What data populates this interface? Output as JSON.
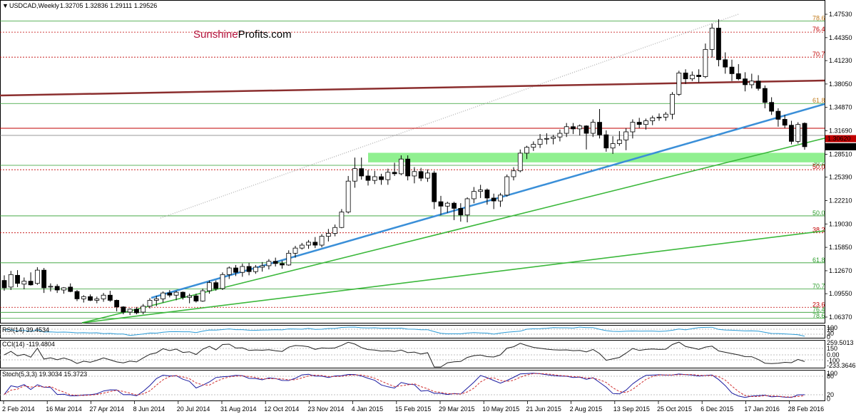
{
  "header": {
    "symbol": "USDCAD,Weekly",
    "ohlc": "1.32705 1.32836 1.29111 1.29526"
  },
  "brand": {
    "part1": "Sunshine",
    "part2": "Profits.com"
  },
  "indicators": {
    "rsi": {
      "label": "RSI(14) 39.4534",
      "levels": [
        "100",
        "70",
        "30",
        "0"
      ]
    },
    "cci": {
      "label": "CCI(14) -119.4804",
      "levels": [
        "259.5013",
        "150",
        "0.00",
        "-100",
        "-233.3646"
      ]
    },
    "stoch": {
      "label": "Stoch(5,3,3) 19.3034 15.3723",
      "levels": [
        "100",
        "80",
        "20",
        "0"
      ]
    }
  },
  "chart_data": {
    "type": "candlestick",
    "y_ticks": [
      "1.47530",
      "1.44350",
      "1.41230",
      "1.38050",
      "1.34870",
      "1.31690",
      "1.28510",
      "1.25390",
      "1.22210",
      "1.19030",
      "1.15850",
      "1.12670",
      "1.09550",
      "1.06370"
    ],
    "ylim": [
      1.052,
      1.478
    ],
    "price_tags": [
      {
        "value": 1.3062,
        "label": "1.30620",
        "color": "#c00000"
      },
      {
        "value": 1.29526,
        "label": "1.29526",
        "color": "#000000"
      }
    ],
    "x_labels": [
      "2 Feb 2014",
      "16 Mar 2014",
      "27 Apr 2014",
      "8 Jun 2014",
      "20 Jul 2014",
      "31 Aug 2014",
      "12 Oct 2014",
      "23 Nov 2014",
      "4 Jan 2015",
      "15 Feb 2015",
      "29 Mar 2015",
      "10 May 2015",
      "21 Jun 2015",
      "2 Aug 2015",
      "13 Sep 2015",
      "25 Oct 2015",
      "6 Dec 2015",
      "17 Jan 2016",
      "28 Feb 2016"
    ],
    "fib_levels": [
      {
        "label": "78.6",
        "value": 1.466,
        "color": "#2e9e2e",
        "label_color": "#c07a1a"
      },
      {
        "label": "76.4",
        "value": 1.451,
        "color": "#c00000",
        "label_color": "#c00000"
      },
      {
        "label": "70.7",
        "value": 1.417,
        "color": "#c00000",
        "label_color": "#c00000"
      },
      {
        "label": "61.8",
        "value": 1.354,
        "color": "#2e9e2e",
        "label_color": "#c07a1a"
      },
      {
        "label": "38.2",
        "value": 1.27,
        "color": "#2e9e2e",
        "label_color": "#2e9e2e"
      },
      {
        "label": "50.0",
        "value": 1.264,
        "color": "#c00000",
        "label_color": "#c00000"
      },
      {
        "label": "50.0",
        "value": 1.2013,
        "color": "#2e9e2e",
        "label_color": "#2e9e2e"
      },
      {
        "label": "38.2",
        "value": 1.1783,
        "color": "#c00000",
        "label_color": "#c00000"
      },
      {
        "label": "61.8",
        "value": 1.1375,
        "color": "#2e9e2e",
        "label_color": "#2e9e2e"
      },
      {
        "label": "70.7",
        "value": 1.1018,
        "color": "#2e9e2e",
        "label_color": "#2e9e2e"
      },
      {
        "label": "23.6",
        "value": 1.077,
        "color": "#c00000",
        "label_color": "#c00000"
      },
      {
        "label": "76.4",
        "value": 1.0702,
        "color": "#2e9e2e",
        "label_color": "#2e9e2e"
      },
      {
        "label": "78.6",
        "value": 1.062,
        "color": "#2e9e2e",
        "label_color": "#2e9e2e"
      }
    ],
    "support_zone": {
      "from": 1.274,
      "to": 1.287,
      "color": "#90f090"
    },
    "candles": [
      {
        "o": 1.1135,
        "h": 1.1205,
        "l": 1.0995,
        "c": 1.1035
      },
      {
        "o": 1.1045,
        "h": 1.1265,
        "l": 1.1005,
        "c": 1.1215
      },
      {
        "o": 1.1205,
        "h": 1.1275,
        "l": 1.1045,
        "c": 1.1095
      },
      {
        "o": 1.1085,
        "h": 1.1175,
        "l": 1.1015,
        "c": 1.1125
      },
      {
        "o": 1.1125,
        "h": 1.1245,
        "l": 1.1065,
        "c": 1.1075
      },
      {
        "o": 1.1095,
        "h": 1.1315,
        "l": 1.1075,
        "c": 1.1275
      },
      {
        "o": 1.1275,
        "h": 1.1305,
        "l": 1.0965,
        "c": 1.1035
      },
      {
        "o": 1.1045,
        "h": 1.1095,
        "l": 1.0985,
        "c": 1.1055
      },
      {
        "o": 1.1055,
        "h": 1.1085,
        "l": 1.0965,
        "c": 1.1005
      },
      {
        "o": 1.1005,
        "h": 1.1045,
        "l": 1.0955,
        "c": 1.1035
      },
      {
        "o": 1.1045,
        "h": 1.1095,
        "l": 1.0975,
        "c": 1.0985
      },
      {
        "o": 1.0985,
        "h": 1.1005,
        "l": 1.0855,
        "c": 1.0885
      },
      {
        "o": 1.0885,
        "h": 1.0935,
        "l": 1.0835,
        "c": 1.0915
      },
      {
        "o": 1.0915,
        "h": 1.0945,
        "l": 1.0855,
        "c": 1.0865
      },
      {
        "o": 1.0865,
        "h": 1.0915,
        "l": 1.0825,
        "c": 1.0885
      },
      {
        "o": 1.0885,
        "h": 1.0965,
        "l": 1.0845,
        "c": 1.0935
      },
      {
        "o": 1.0935,
        "h": 1.0995,
        "l": 1.0845,
        "c": 1.0865
      },
      {
        "o": 1.0865,
        "h": 1.0875,
        "l": 1.0715,
        "c": 1.0775
      },
      {
        "o": 1.0775,
        "h": 1.0785,
        "l": 1.0675,
        "c": 1.0705
      },
      {
        "o": 1.0705,
        "h": 1.0755,
        "l": 1.0665,
        "c": 1.0745
      },
      {
        "o": 1.0745,
        "h": 1.0775,
        "l": 1.0675,
        "c": 1.0695
      },
      {
        "o": 1.0705,
        "h": 1.0815,
        "l": 1.0675,
        "c": 1.0785
      },
      {
        "o": 1.0785,
        "h": 1.0895,
        "l": 1.0755,
        "c": 1.0865
      },
      {
        "o": 1.0865,
        "h": 1.0925,
        "l": 1.0785,
        "c": 1.0885
      },
      {
        "o": 1.0885,
        "h": 1.0985,
        "l": 1.0835,
        "c": 1.0965
      },
      {
        "o": 1.0965,
        "h": 1.1005,
        "l": 1.0905,
        "c": 1.0935
      },
      {
        "o": 1.0935,
        "h": 1.0995,
        "l": 1.0865,
        "c": 1.0975
      },
      {
        "o": 1.0975,
        "h": 1.0985,
        "l": 1.0875,
        "c": 1.0905
      },
      {
        "o": 1.0905,
        "h": 1.0955,
        "l": 1.0825,
        "c": 1.0925
      },
      {
        "o": 1.0925,
        "h": 1.0955,
        "l": 1.0835,
        "c": 1.0855
      },
      {
        "o": 1.0855,
        "h": 1.1025,
        "l": 1.0845,
        "c": 1.0995
      },
      {
        "o": 1.0995,
        "h": 1.1135,
        "l": 1.0955,
        "c": 1.1105
      },
      {
        "o": 1.1105,
        "h": 1.1135,
        "l": 1.0995,
        "c": 1.1025
      },
      {
        "o": 1.1025,
        "h": 1.1245,
        "l": 1.1005,
        "c": 1.1215
      },
      {
        "o": 1.1215,
        "h": 1.1325,
        "l": 1.1155,
        "c": 1.1305
      },
      {
        "o": 1.1305,
        "h": 1.1345,
        "l": 1.1195,
        "c": 1.1245
      },
      {
        "o": 1.1245,
        "h": 1.1365,
        "l": 1.1185,
        "c": 1.1325
      },
      {
        "o": 1.1325,
        "h": 1.1375,
        "l": 1.1205,
        "c": 1.1255
      },
      {
        "o": 1.1255,
        "h": 1.1345,
        "l": 1.1225,
        "c": 1.1315
      },
      {
        "o": 1.1315,
        "h": 1.1385,
        "l": 1.1255,
        "c": 1.1335
      },
      {
        "o": 1.1335,
        "h": 1.1425,
        "l": 1.1285,
        "c": 1.1395
      },
      {
        "o": 1.1395,
        "h": 1.1445,
        "l": 1.1325,
        "c": 1.1365
      },
      {
        "o": 1.1365,
        "h": 1.1405,
        "l": 1.1295,
        "c": 1.1345
      },
      {
        "o": 1.1345,
        "h": 1.1545,
        "l": 1.1335,
        "c": 1.1505
      },
      {
        "o": 1.1505,
        "h": 1.1605,
        "l": 1.1445,
        "c": 1.1575
      },
      {
        "o": 1.1575,
        "h": 1.1645,
        "l": 1.1555,
        "c": 1.1615
      },
      {
        "o": 1.1615,
        "h": 1.1685,
        "l": 1.1565,
        "c": 1.1655
      },
      {
        "o": 1.1655,
        "h": 1.1725,
        "l": 1.1575,
        "c": 1.1615
      },
      {
        "o": 1.1615,
        "h": 1.1765,
        "l": 1.1585,
        "c": 1.1735
      },
      {
        "o": 1.1735,
        "h": 1.1835,
        "l": 1.1665,
        "c": 1.1775
      },
      {
        "o": 1.1775,
        "h": 1.1895,
        "l": 1.1735,
        "c": 1.1855
      },
      {
        "o": 1.1855,
        "h": 1.2105,
        "l": 1.1845,
        "c": 1.2065
      },
      {
        "o": 1.2065,
        "h": 1.2555,
        "l": 1.2045,
        "c": 1.2485
      },
      {
        "o": 1.2485,
        "h": 1.2805,
        "l": 1.2395,
        "c": 1.2655
      },
      {
        "o": 1.2655,
        "h": 1.2805,
        "l": 1.2505,
        "c": 1.2555
      },
      {
        "o": 1.2555,
        "h": 1.2635,
        "l": 1.2425,
        "c": 1.2495
      },
      {
        "o": 1.2495,
        "h": 1.2625,
        "l": 1.2445,
        "c": 1.2545
      },
      {
        "o": 1.2545,
        "h": 1.2585,
        "l": 1.2435,
        "c": 1.2505
      },
      {
        "o": 1.2505,
        "h": 1.2655,
        "l": 1.2435,
        "c": 1.2605
      },
      {
        "o": 1.2605,
        "h": 1.2735,
        "l": 1.2555,
        "c": 1.2585
      },
      {
        "o": 1.2585,
        "h": 1.2835,
        "l": 1.2565,
        "c": 1.2785
      },
      {
        "o": 1.2785,
        "h": 1.2835,
        "l": 1.2495,
        "c": 1.2555
      },
      {
        "o": 1.2555,
        "h": 1.2675,
        "l": 1.2455,
        "c": 1.2615
      },
      {
        "o": 1.2615,
        "h": 1.2665,
        "l": 1.2485,
        "c": 1.2525
      },
      {
        "o": 1.2525,
        "h": 1.2645,
        "l": 1.2475,
        "c": 1.2595
      },
      {
        "o": 1.2595,
        "h": 1.2625,
        "l": 1.2105,
        "c": 1.2205
      },
      {
        "o": 1.2205,
        "h": 1.2285,
        "l": 1.2025,
        "c": 1.2145
      },
      {
        "o": 1.2145,
        "h": 1.2205,
        "l": 1.2055,
        "c": 1.2185
      },
      {
        "o": 1.2185,
        "h": 1.2205,
        "l": 1.1955,
        "c": 1.2115
      },
      {
        "o": 1.2115,
        "h": 1.2185,
        "l": 1.1935,
        "c": 1.2025
      },
      {
        "o": 1.2025,
        "h": 1.2265,
        "l": 1.1925,
        "c": 1.2245
      },
      {
        "o": 1.2245,
        "h": 1.2405,
        "l": 1.2185,
        "c": 1.2345
      },
      {
        "o": 1.2345,
        "h": 1.2435,
        "l": 1.2255,
        "c": 1.2365
      },
      {
        "o": 1.2365,
        "h": 1.2385,
        "l": 1.2165,
        "c": 1.2255
      },
      {
        "o": 1.2255,
        "h": 1.2315,
        "l": 1.2105,
        "c": 1.2215
      },
      {
        "o": 1.2215,
        "h": 1.2325,
        "l": 1.2135,
        "c": 1.2295
      },
      {
        "o": 1.2295,
        "h": 1.2575,
        "l": 1.2275,
        "c": 1.2545
      },
      {
        "o": 1.2545,
        "h": 1.2675,
        "l": 1.2495,
        "c": 1.2625
      },
      {
        "o": 1.2625,
        "h": 1.2915,
        "l": 1.2605,
        "c": 1.2865
      },
      {
        "o": 1.2865,
        "h": 1.2965,
        "l": 1.2785,
        "c": 1.2945
      },
      {
        "o": 1.2945,
        "h": 1.3025,
        "l": 1.2895,
        "c": 1.2985
      },
      {
        "o": 1.2985,
        "h": 1.3125,
        "l": 1.2935,
        "c": 1.3055
      },
      {
        "o": 1.3055,
        "h": 1.3135,
        "l": 1.2985,
        "c": 1.3065
      },
      {
        "o": 1.3065,
        "h": 1.3115,
        "l": 1.2985,
        "c": 1.3085
      },
      {
        "o": 1.3085,
        "h": 1.3185,
        "l": 1.3025,
        "c": 1.3135
      },
      {
        "o": 1.3135,
        "h": 1.3275,
        "l": 1.3085,
        "c": 1.3225
      },
      {
        "o": 1.3225,
        "h": 1.3275,
        "l": 1.3125,
        "c": 1.3195
      },
      {
        "o": 1.3195,
        "h": 1.3255,
        "l": 1.3105,
        "c": 1.3235
      },
      {
        "o": 1.3235,
        "h": 1.3245,
        "l": 1.2915,
        "c": 1.3135
      },
      {
        "o": 1.3135,
        "h": 1.3325,
        "l": 1.3085,
        "c": 1.3285
      },
      {
        "o": 1.3285,
        "h": 1.3465,
        "l": 1.3065,
        "c": 1.3115
      },
      {
        "o": 1.3115,
        "h": 1.3175,
        "l": 1.2885,
        "c": 1.2935
      },
      {
        "o": 1.2935,
        "h": 1.3095,
        "l": 1.2855,
        "c": 1.2995
      },
      {
        "o": 1.2995,
        "h": 1.3165,
        "l": 1.2965,
        "c": 1.3045
      },
      {
        "o": 1.3045,
        "h": 1.3205,
        "l": 1.2905,
        "c": 1.3155
      },
      {
        "o": 1.3155,
        "h": 1.3325,
        "l": 1.3065,
        "c": 1.3285
      },
      {
        "o": 1.3285,
        "h": 1.3345,
        "l": 1.3205,
        "c": 1.3255
      },
      {
        "o": 1.3255,
        "h": 1.3335,
        "l": 1.3185,
        "c": 1.3305
      },
      {
        "o": 1.3305,
        "h": 1.3375,
        "l": 1.3245,
        "c": 1.3345
      },
      {
        "o": 1.3345,
        "h": 1.3405,
        "l": 1.3305,
        "c": 1.3355
      },
      {
        "o": 1.3355,
        "h": 1.3425,
        "l": 1.3305,
        "c": 1.3395
      },
      {
        "o": 1.3395,
        "h": 1.3695,
        "l": 1.3325,
        "c": 1.3665
      },
      {
        "o": 1.3665,
        "h": 1.3985,
        "l": 1.3645,
        "c": 1.3955
      },
      {
        "o": 1.3955,
        "h": 1.4005,
        "l": 1.3805,
        "c": 1.3875
      },
      {
        "o": 1.3875,
        "h": 1.3975,
        "l": 1.3845,
        "c": 1.3925
      },
      {
        "o": 1.3925,
        "h": 1.4005,
        "l": 1.3825,
        "c": 1.3905
      },
      {
        "o": 1.3905,
        "h": 1.4355,
        "l": 1.3885,
        "c": 1.4275
      },
      {
        "o": 1.4275,
        "h": 1.4625,
        "l": 1.4165,
        "c": 1.4565
      },
      {
        "o": 1.4565,
        "h": 1.4685,
        "l": 1.4045,
        "c": 1.4135
      },
      {
        "o": 1.4135,
        "h": 1.4235,
        "l": 1.3945,
        "c": 1.4035
      },
      {
        "o": 1.4035,
        "h": 1.4135,
        "l": 1.3845,
        "c": 1.3945
      },
      {
        "o": 1.3945,
        "h": 1.4075,
        "l": 1.3855,
        "c": 1.3875
      },
      {
        "o": 1.3875,
        "h": 1.3965,
        "l": 1.3705,
        "c": 1.3795
      },
      {
        "o": 1.3795,
        "h": 1.3945,
        "l": 1.3745,
        "c": 1.3845
      },
      {
        "o": 1.3845,
        "h": 1.3925,
        "l": 1.3715,
        "c": 1.3745
      },
      {
        "o": 1.3745,
        "h": 1.3785,
        "l": 1.3475,
        "c": 1.3555
      },
      {
        "o": 1.3555,
        "h": 1.3625,
        "l": 1.3385,
        "c": 1.3435
      },
      {
        "o": 1.3435,
        "h": 1.3475,
        "l": 1.3225,
        "c": 1.3325
      },
      {
        "o": 1.3325,
        "h": 1.3385,
        "l": 1.3205,
        "c": 1.3245
      },
      {
        "o": 1.3245,
        "h": 1.3305,
        "l": 1.2985,
        "c": 1.3025
      },
      {
        "o": 1.3025,
        "h": 1.3285,
        "l": 1.2995,
        "c": 1.3255
      },
      {
        "o": 1.32705,
        "h": 1.32836,
        "l": 1.29111,
        "c": 1.29526
      }
    ]
  }
}
